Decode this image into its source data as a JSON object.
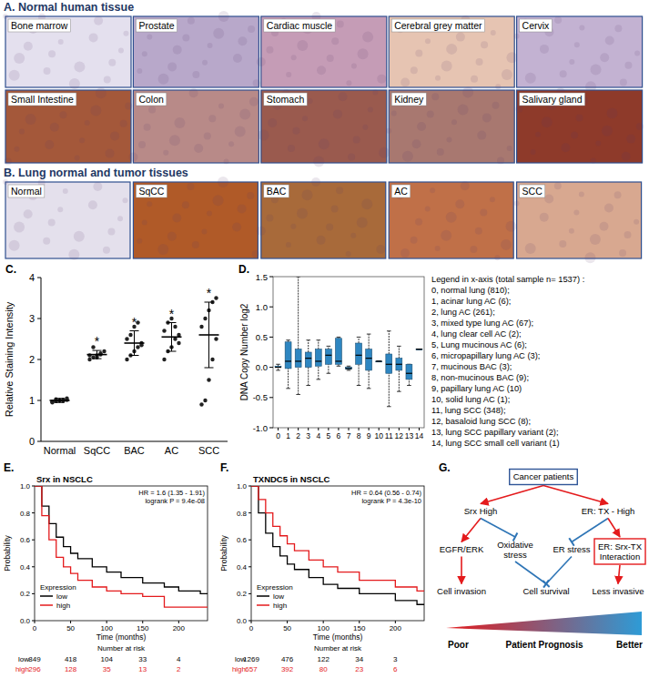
{
  "panels": {
    "A": {
      "title": "A. Normal human tissue",
      "tiles": [
        {
          "label": "Bone marrow",
          "color": "#e4e0ee"
        },
        {
          "label": "Prostate",
          "color": "#b8a8ca"
        },
        {
          "label": "Cardiac muscle",
          "color": "#c59cb6"
        },
        {
          "label": "Cerebral grey matter",
          "color": "#e6c4b2"
        },
        {
          "label": "Cervix",
          "color": "#c3b2d2"
        },
        {
          "label": "Small Intestine",
          "color": "#a4583a"
        },
        {
          "label": "Colon",
          "color": "#b88a88"
        },
        {
          "label": "Stomach",
          "color": "#9a5a4e"
        },
        {
          "label": "Kidney",
          "color": "#a87870"
        },
        {
          "label": "Salivary gland",
          "color": "#8e3a2a"
        }
      ]
    },
    "B": {
      "title": "B. Lung normal and tumor tissues",
      "tiles": [
        {
          "label": "Normal",
          "color": "#e4e0ec"
        },
        {
          "label": "SqCC",
          "color": "#b05a28"
        },
        {
          "label": "BAC",
          "color": "#a86a3a"
        },
        {
          "label": "AC",
          "color": "#c07048"
        },
        {
          "label": "SCC",
          "color": "#d8a890"
        }
      ]
    }
  },
  "chart_data": [
    {
      "type": "scatter",
      "panel_label": "C.",
      "y_label": "Relative Staining Intensity",
      "categories": [
        "Normal",
        "SqCC",
        "BAC",
        "AC",
        "SCC"
      ],
      "values": [
        1.0,
        2.12,
        2.4,
        2.55,
        2.6
      ],
      "errors": [
        0.05,
        0.1,
        0.3,
        0.35,
        0.8
      ],
      "points": [
        [
          0.95,
          0.98,
          1.0,
          1.02,
          1.05,
          0.97,
          1.03,
          1.0,
          0.99,
          1.01
        ],
        [
          2.0,
          2.05,
          2.1,
          2.15,
          2.2,
          2.1,
          2.3,
          2.05,
          2.12
        ],
        [
          2.0,
          2.1,
          2.2,
          2.3,
          2.4,
          2.5,
          2.6,
          2.8,
          2.9,
          2.35
        ],
        [
          2.0,
          2.2,
          2.3,
          2.5,
          2.6,
          2.7,
          2.9,
          3.0,
          2.8,
          2.4
        ],
        [
          0.9,
          1.0,
          1.5,
          2.0,
          2.5,
          2.8,
          3.0,
          3.2,
          3.4,
          3.5
        ]
      ],
      "significance": [
        null,
        "*",
        "*",
        "*",
        "*"
      ],
      "color": "#222222",
      "ylim": [
        0,
        4
      ],
      "yticks": [
        0,
        1,
        2,
        3,
        4
      ]
    },
    {
      "type": "box",
      "panel_label": "D.",
      "y_label": "DNA Copy Number log2",
      "categories": [
        "0",
        "1",
        "2",
        "3",
        "4",
        "5",
        "6",
        "7",
        "8",
        "9",
        "10",
        "11",
        "12",
        "13",
        "14"
      ],
      "min": [
        -0.05,
        -0.35,
        -0.45,
        -0.3,
        -0.2,
        -0.1,
        0.02,
        -0.05,
        -0.3,
        -0.35,
        0.1,
        -0.65,
        -0.4,
        -0.3,
        0.3
      ],
      "q1": [
        0.0,
        -0.02,
        0.0,
        0.0,
        0.02,
        0.05,
        0.05,
        -0.03,
        0.05,
        -0.05,
        0.1,
        -0.1,
        -0.05,
        -0.2,
        0.3
      ],
      "median": [
        0.0,
        0.1,
        0.1,
        0.15,
        0.1,
        0.2,
        0.1,
        -0.02,
        0.2,
        0.15,
        0.1,
        0.05,
        0.05,
        -0.1,
        0.3
      ],
      "q3": [
        0.02,
        0.42,
        0.3,
        0.25,
        0.3,
        0.3,
        0.48,
        0.0,
        0.4,
        0.3,
        0.1,
        0.22,
        0.15,
        0.05,
        0.3
      ],
      "max": [
        0.05,
        0.45,
        1.5,
        0.45,
        0.45,
        0.35,
        0.5,
        0.02,
        0.5,
        0.55,
        0.1,
        0.6,
        0.35,
        0.05,
        0.3
      ],
      "color": "#2e86c1",
      "ylim": [
        -1.0,
        1.5
      ],
      "yticks": [
        {
          "value": -1.0,
          "label": "-1.0"
        },
        {
          "value": -0.5,
          "label": "-0.5"
        },
        {
          "value": 0,
          "label": "0.0"
        },
        {
          "value": 0.5,
          "label": "0.5"
        },
        {
          "value": 1.0,
          "label": "1.0"
        },
        {
          "value": 1.5,
          "label": "1.5"
        }
      ],
      "legend_title": "Legend in x-axis (total sample n= 1537) :",
      "legend_items": [
        "0, normal lung (810);",
        "1, acinar lung AC (6);",
        "2, lung AC (261);",
        "3, mixed type lung AC (67);",
        "4, lung clear cell AC (2);",
        "5, Lung mucinous AC (6);",
        "6, micropapillary lung AC (3);",
        "7, mucinous BAC (3);",
        "8, non-mucinous BAC (9);",
        "9, papillary lung AC (10)",
        "10, solid lung AC (1);",
        "11, lung SCC (348);",
        "12, basaloid lung SCC (8);",
        "13, lung SCC papillary variant (2);",
        "14, lung SCC small cell variant (1)"
      ]
    },
    {
      "type": "line",
      "line_style": "step",
      "panel_label": "E.",
      "title": "Srx in NSCLC",
      "annotations": [
        "HR = 1.6 (1.35 - 1.91)",
        "logrank P = 9.4e-08"
      ],
      "x_label": "Time (months)",
      "y_label": "Probability",
      "legend_title": "Expression",
      "at_risk_title": "Number at risk",
      "series": [
        {
          "name": "low",
          "color": "#000000",
          "x": [
            0,
            10,
            20,
            30,
            40,
            50,
            60,
            80,
            100,
            120,
            150,
            180,
            200,
            230
          ],
          "values": [
            1.0,
            0.85,
            0.72,
            0.62,
            0.55,
            0.5,
            0.46,
            0.4,
            0.36,
            0.32,
            0.28,
            0.25,
            0.22,
            0.2
          ],
          "at_risk": [
            849,
            418,
            104,
            33,
            4
          ]
        },
        {
          "name": "high",
          "color": "#e41a1c",
          "x": [
            0,
            10,
            20,
            30,
            40,
            50,
            60,
            80,
            100,
            120,
            150,
            180,
            200
          ],
          "values": [
            1.0,
            0.78,
            0.6,
            0.47,
            0.4,
            0.35,
            0.3,
            0.25,
            0.22,
            0.2,
            0.18,
            0.1,
            0.1
          ],
          "at_risk": [
            296,
            128,
            35,
            13,
            2
          ]
        }
      ],
      "xlim": [
        0,
        240
      ],
      "xticks": [
        0,
        50,
        100,
        150,
        200
      ],
      "ylim": [
        0,
        1.0
      ],
      "yticks": [
        {
          "value": 0,
          "label": "0.0"
        },
        {
          "value": 0.2,
          "label": "0.2"
        },
        {
          "value": 0.4,
          "label": "0.4"
        },
        {
          "value": 0.6,
          "label": "0.6"
        },
        {
          "value": 0.8,
          "label": "0.8"
        },
        {
          "value": 1.0,
          "label": "1.0"
        }
      ]
    },
    {
      "type": "line",
      "line_style": "step",
      "panel_label": "F.",
      "title": "TXNDC5 in NSCLC",
      "annotations": [
        "HR = 0.64 (0.56 - 0.74)",
        "logrank P = 4.3e-10"
      ],
      "x_label": "Time (months)",
      "y_label": "Probability",
      "legend_title": "Expression",
      "at_risk_title": "Number at risk",
      "series": [
        {
          "name": "low",
          "color": "#000000",
          "x": [
            0,
            10,
            20,
            30,
            40,
            50,
            60,
            80,
            100,
            120,
            150,
            200,
            230
          ],
          "values": [
            1.0,
            0.8,
            0.65,
            0.55,
            0.48,
            0.42,
            0.38,
            0.32,
            0.27,
            0.24,
            0.2,
            0.15,
            0.12
          ],
          "at_risk": [
            1269,
            476,
            122,
            34,
            3
          ]
        },
        {
          "name": "high",
          "color": "#e41a1c",
          "x": [
            0,
            10,
            20,
            30,
            40,
            50,
            60,
            80,
            100,
            120,
            150,
            200,
            230
          ],
          "values": [
            1.0,
            0.9,
            0.8,
            0.7,
            0.63,
            0.57,
            0.52,
            0.45,
            0.4,
            0.36,
            0.3,
            0.25,
            0.22
          ],
          "at_risk": [
            657,
            392,
            80,
            23,
            6
          ]
        }
      ],
      "xlim": [
        0,
        240
      ],
      "xticks": [
        0,
        50,
        100,
        150,
        200
      ],
      "ylim": [
        0,
        1.0
      ],
      "yticks": [
        {
          "value": 0,
          "label": "0.0"
        },
        {
          "value": 0.2,
          "label": "0.2"
        },
        {
          "value": 0.4,
          "label": "0.4"
        },
        {
          "value": 0.6,
          "label": "0.6"
        },
        {
          "value": 0.8,
          "label": "0.8"
        },
        {
          "value": 1.0,
          "label": "1.0"
        }
      ]
    }
  ],
  "diagram": {
    "panel_label": "G.",
    "nodes": [
      {
        "label": [
          "Cancer patients"
        ],
        "box": "#2f5597"
      },
      {
        "label": [
          "Srx High"
        ]
      },
      {
        "label": [
          "ER: TX - High"
        ]
      },
      {
        "label": [
          "EGFR/ERK"
        ]
      },
      {
        "label": [
          "Oxidative",
          "stress"
        ]
      },
      {
        "label": [
          "ER stress"
        ]
      },
      {
        "label": [
          "ER: Srx-TX",
          "Interaction"
        ],
        "box": "#e41a1c"
      },
      {
        "label": [
          "Cell invasion"
        ]
      },
      {
        "label": [
          "Cell survival"
        ]
      },
      {
        "label": [
          "Less invasive"
        ]
      }
    ],
    "edges": [
      {
        "from": 0,
        "to": 1,
        "kind": "activate",
        "color": "#e41a1c"
      },
      {
        "from": 0,
        "to": 2,
        "kind": "activate",
        "color": "#e41a1c"
      },
      {
        "from": 1,
        "to": 3,
        "kind": "activate",
        "color": "#e41a1c"
      },
      {
        "from": 1,
        "to": 4,
        "kind": "inhibit",
        "color": "#2e75b6"
      },
      {
        "from": 2,
        "to": 5,
        "kind": "inhibit",
        "color": "#2e75b6"
      },
      {
        "from": 2,
        "to": 6,
        "kind": "activate",
        "color": "#e41a1c"
      },
      {
        "from": 3,
        "to": 7,
        "kind": "activate",
        "color": "#e41a1c"
      },
      {
        "from": 4,
        "to": 8,
        "kind": "inhibit",
        "color": "#2e75b6"
      },
      {
        "from": 5,
        "to": 8,
        "kind": "inhibit",
        "color": "#2e75b6"
      },
      {
        "from": 6,
        "to": 9,
        "kind": "activate",
        "color": "#e41a1c"
      }
    ],
    "prognosis": {
      "left": "Poor",
      "center": "Patient Prognosis",
      "right": "Better",
      "colors": [
        "#e41a1c",
        "#2e9bd6"
      ]
    }
  }
}
